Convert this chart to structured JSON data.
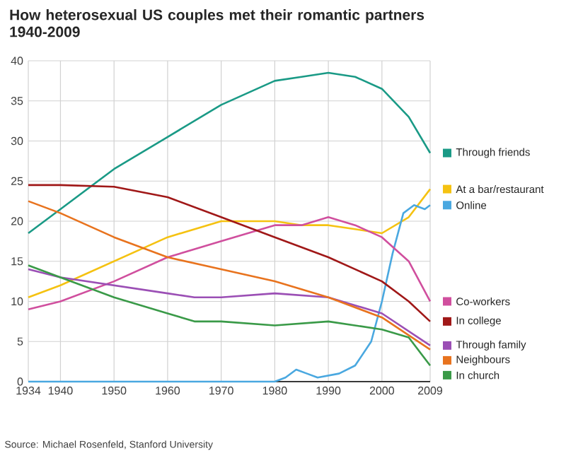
{
  "chart_data": {
    "type": "line",
    "title": "How heterosexual US couples met their romantic partners\n1940-2009",
    "xlim": [
      1934,
      2009
    ],
    "ylim": [
      0,
      40
    ],
    "xticks": [
      1934,
      1940,
      1950,
      1960,
      1970,
      1980,
      1990,
      2000,
      2009
    ],
    "yticks": [
      0,
      5,
      10,
      15,
      20,
      25,
      30,
      35,
      40
    ],
    "grid": true,
    "legend": "right",
    "marker": "none",
    "line_style": "solid",
    "annotations": [
      "Source: Michael Rosenfeld, Stanford University"
    ],
    "series": [
      {
        "name": "Through friends",
        "color": "#1a9a86",
        "x": [
          1934,
          1940,
          1950,
          1960,
          1970,
          1980,
          1985,
          1990,
          1995,
          2000,
          2005,
          2009
        ],
        "values": [
          18.5,
          21.5,
          26.5,
          30.5,
          34.5,
          37.5,
          38,
          38.5,
          38,
          36.5,
          33,
          28.5
        ]
      },
      {
        "name": "At a bar/restaurant",
        "color": "#f5c211",
        "x": [
          1934,
          1940,
          1950,
          1960,
          1970,
          1980,
          1985,
          1990,
          1995,
          2000,
          2005,
          2009
        ],
        "values": [
          10.5,
          12,
          15,
          18,
          20,
          20,
          19.5,
          19.5,
          19,
          18.5,
          20.5,
          24
        ]
      },
      {
        "name": "Online",
        "color": "#4aa8e0",
        "x": [
          1934,
          1980,
          1982,
          1984,
          1986,
          1988,
          1992,
          1995,
          1998,
          2000,
          2002,
          2004,
          2006,
          2008,
          2009
        ],
        "values": [
          0,
          0,
          0.5,
          1.5,
          1,
          0.5,
          1,
          2,
          5,
          10,
          16,
          21,
          22,
          21.5,
          22
        ]
      },
      {
        "name": "Co-workers",
        "color": "#d04f9e",
        "x": [
          1934,
          1940,
          1950,
          1960,
          1970,
          1980,
          1985,
          1990,
          1995,
          2000,
          2005,
          2009
        ],
        "values": [
          9,
          10,
          12.5,
          15.5,
          17.5,
          19.5,
          19.5,
          20.5,
          19.5,
          18,
          15,
          10
        ]
      },
      {
        "name": "In college",
        "color": "#a01818",
        "x": [
          1934,
          1940,
          1950,
          1960,
          1970,
          1980,
          1990,
          1995,
          2000,
          2005,
          2009
        ],
        "values": [
          24.5,
          24.5,
          24.3,
          23,
          20.5,
          18,
          15.5,
          14,
          12.5,
          10,
          7.5
        ]
      },
      {
        "name": "Through family",
        "color": "#9b4fb5",
        "x": [
          1934,
          1940,
          1950,
          1960,
          1965,
          1970,
          1980,
          1990,
          2000,
          2009
        ],
        "values": [
          14,
          13,
          12,
          11,
          10.5,
          10.5,
          11,
          10.5,
          8.5,
          4.5
        ]
      },
      {
        "name": "Neighbours",
        "color": "#e8731e",
        "x": [
          1934,
          1940,
          1950,
          1960,
          1970,
          1980,
          1990,
          2000,
          2009
        ],
        "values": [
          22.5,
          21,
          18,
          15.5,
          14,
          12.5,
          10.5,
          8,
          4
        ]
      },
      {
        "name": "In church",
        "color": "#3a9a48",
        "x": [
          1934,
          1940,
          1950,
          1960,
          1965,
          1970,
          1980,
          1990,
          2000,
          2005,
          2009
        ],
        "values": [
          14.5,
          13,
          10.5,
          8.5,
          7.5,
          7.5,
          7,
          7.5,
          6.5,
          5.5,
          2
        ]
      }
    ]
  }
}
